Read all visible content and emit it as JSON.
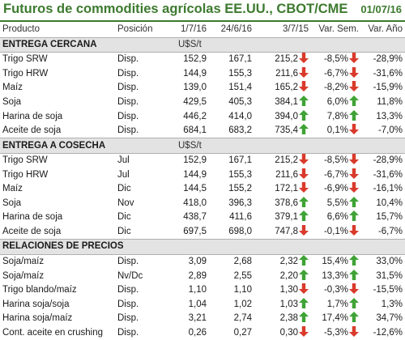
{
  "title": "Futuros de commodities agrícolas EE.UU., CBOT/CME",
  "date": "01/07/16",
  "headers": [
    "Producto",
    "Posición",
    "1/7/16",
    "24/6/16",
    "3/7/15",
    "Var. Sem.",
    "Var. Año"
  ],
  "colors": {
    "up": "#3fa335",
    "down": "#d93a2b",
    "accent": "#3d7a2f"
  },
  "sections": [
    {
      "title": "ENTREGA CERCANA",
      "unit": "U$S/t",
      "rows": [
        {
          "producto": "Trigo SRW",
          "posicion": "Disp.",
          "v1": "152,9",
          "v2": "167,1",
          "v3": "215,2",
          "a1": "down",
          "sem": "-8,5%",
          "a2": "down",
          "anio": "-28,9%"
        },
        {
          "producto": "Trigo HRW",
          "posicion": "Disp.",
          "v1": "144,9",
          "v2": "155,3",
          "v3": "211,6",
          "a1": "down",
          "sem": "-6,7%",
          "a2": "down",
          "anio": "-31,6%"
        },
        {
          "producto": "Maíz",
          "posicion": "Disp.",
          "v1": "139,0",
          "v2": "151,4",
          "v3": "165,2",
          "a1": "down",
          "sem": "-8,2%",
          "a2": "down",
          "anio": "-15,9%"
        },
        {
          "producto": "Soja",
          "posicion": "Disp.",
          "v1": "429,5",
          "v2": "405,3",
          "v3": "384,1",
          "a1": "up",
          "sem": "6,0%",
          "a2": "up",
          "anio": "11,8%"
        },
        {
          "producto": "Harina de soja",
          "posicion": "Disp.",
          "v1": "446,2",
          "v2": "414,0",
          "v3": "394,0",
          "a1": "up",
          "sem": "7,8%",
          "a2": "up",
          "anio": "13,3%"
        },
        {
          "producto": "Aceite de soja",
          "posicion": "Disp.",
          "v1": "684,1",
          "v2": "683,2",
          "v3": "735,4",
          "a1": "up",
          "sem": "0,1%",
          "a2": "down",
          "anio": "-7,0%"
        }
      ]
    },
    {
      "title": "ENTREGA A COSECHA",
      "unit": "U$S/t",
      "rows": [
        {
          "producto": "Trigo SRW",
          "posicion": "Jul",
          "v1": "152,9",
          "v2": "167,1",
          "v3": "215,2",
          "a1": "down",
          "sem": "-8,5%",
          "a2": "down",
          "anio": "-28,9%"
        },
        {
          "producto": "Trigo HRW",
          "posicion": "Jul",
          "v1": "144,9",
          "v2": "155,3",
          "v3": "211,6",
          "a1": "down",
          "sem": "-6,7%",
          "a2": "down",
          "anio": "-31,6%"
        },
        {
          "producto": "Maíz",
          "posicion": "Dic",
          "v1": "144,5",
          "v2": "155,2",
          "v3": "172,1",
          "a1": "down",
          "sem": "-6,9%",
          "a2": "down",
          "anio": "-16,1%"
        },
        {
          "producto": "Soja",
          "posicion": "Nov",
          "v1": "418,0",
          "v2": "396,3",
          "v3": "378,6",
          "a1": "up",
          "sem": "5,5%",
          "a2": "up",
          "anio": "10,4%"
        },
        {
          "producto": "Harina de soja",
          "posicion": "Dic",
          "v1": "438,7",
          "v2": "411,6",
          "v3": "379,1",
          "a1": "up",
          "sem": "6,6%",
          "a2": "up",
          "anio": "15,7%"
        },
        {
          "producto": "Aceite de soja",
          "posicion": "Dic",
          "v1": "697,5",
          "v2": "698,0",
          "v3": "747,8",
          "a1": "down",
          "sem": "-0,1%",
          "a2": "down",
          "anio": "-6,7%"
        }
      ]
    },
    {
      "title": "RELACIONES DE PRECIOS",
      "unit": "",
      "rows": [
        {
          "producto": "Soja/maíz",
          "posicion": "Disp.",
          "v1": "3,09",
          "v2": "2,68",
          "v3": "2,32",
          "a1": "up",
          "sem": "15,4%",
          "a2": "up",
          "anio": "33,0%"
        },
        {
          "producto": "Soja/maíz",
          "posicion": "Nv/Dc",
          "v1": "2,89",
          "v2": "2,55",
          "v3": "2,20",
          "a1": "up",
          "sem": "13,3%",
          "a2": "up",
          "anio": "31,5%"
        },
        {
          "producto": "Trigo blando/maíz",
          "posicion": "Disp.",
          "v1": "1,10",
          "v2": "1,10",
          "v3": "1,30",
          "a1": "down",
          "sem": "-0,3%",
          "a2": "down",
          "anio": "-15,5%"
        },
        {
          "producto": "Harina soja/soja",
          "posicion": "Disp.",
          "v1": "1,04",
          "v2": "1,02",
          "v3": "1,03",
          "a1": "up",
          "sem": "1,7%",
          "a2": "up",
          "anio": "1,3%"
        },
        {
          "producto": "Harina soja/maíz",
          "posicion": "Disp.",
          "v1": "3,21",
          "v2": "2,74",
          "v3": "2,38",
          "a1": "up",
          "sem": "17,4%",
          "a2": "up",
          "anio": "34,7%"
        },
        {
          "producto": "Cont. aceite en crushing",
          "posicion": "Disp.",
          "v1": "0,26",
          "v2": "0,27",
          "v3": "0,30",
          "a1": "down",
          "sem": "-5,3%",
          "a2": "down",
          "anio": "-12,6%"
        }
      ]
    }
  ]
}
